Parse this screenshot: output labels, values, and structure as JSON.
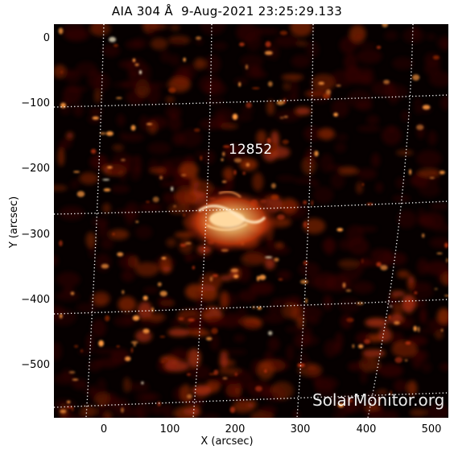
{
  "title": "AIA 304 Å  9-Aug-2021 23:25:29.133",
  "xlabel": "X (arcsec)",
  "ylabel": "Y (arcsec)",
  "xticks": [
    "0",
    "100",
    "200",
    "300",
    "400",
    "500"
  ],
  "yticks": [
    "0",
    "−100",
    "−200",
    "−300",
    "−400",
    "−500"
  ],
  "active_region": "12852",
  "watermark": "SolarMonitor.org",
  "colors": {
    "background": "#000000",
    "cool": "#3a0500",
    "mid": "#b0300a",
    "hot": "#ff9a40",
    "peak": "#fff2d0",
    "grid": "#ffffff"
  }
}
